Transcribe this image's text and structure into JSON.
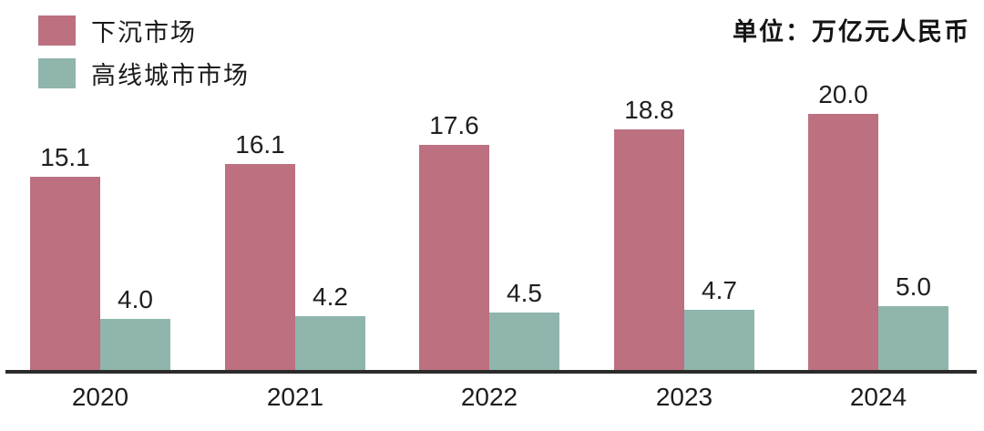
{
  "legend": {
    "items": [
      {
        "label": "下沉市场",
        "color": "#bd7080"
      },
      {
        "label": "高线城市市场",
        "color": "#8fb5ad"
      }
    ]
  },
  "unit_note": "单位：万亿元人民币",
  "chart_data": {
    "type": "bar",
    "title": "",
    "xlabel": "",
    "ylabel": "",
    "unit_note": "单位：万亿元人民币",
    "categories": [
      "2020",
      "2021",
      "2022",
      "2023",
      "2024"
    ],
    "series": [
      {
        "name": "下沉市场",
        "color": "#bd7080",
        "values": [
          15.1,
          16.1,
          17.6,
          18.8,
          20.0
        ]
      },
      {
        "name": "高线城市市场",
        "color": "#8fb5ad",
        "values": [
          4.0,
          4.2,
          4.5,
          4.7,
          5.0
        ]
      }
    ],
    "value_labels_shown": true,
    "value_label_decimals": 1,
    "ylim": [
      0,
      20
    ],
    "grid": false,
    "legend_position": "top-left",
    "axis_line_color": "#2b2b2b",
    "text_color": "#1f1f1f"
  }
}
